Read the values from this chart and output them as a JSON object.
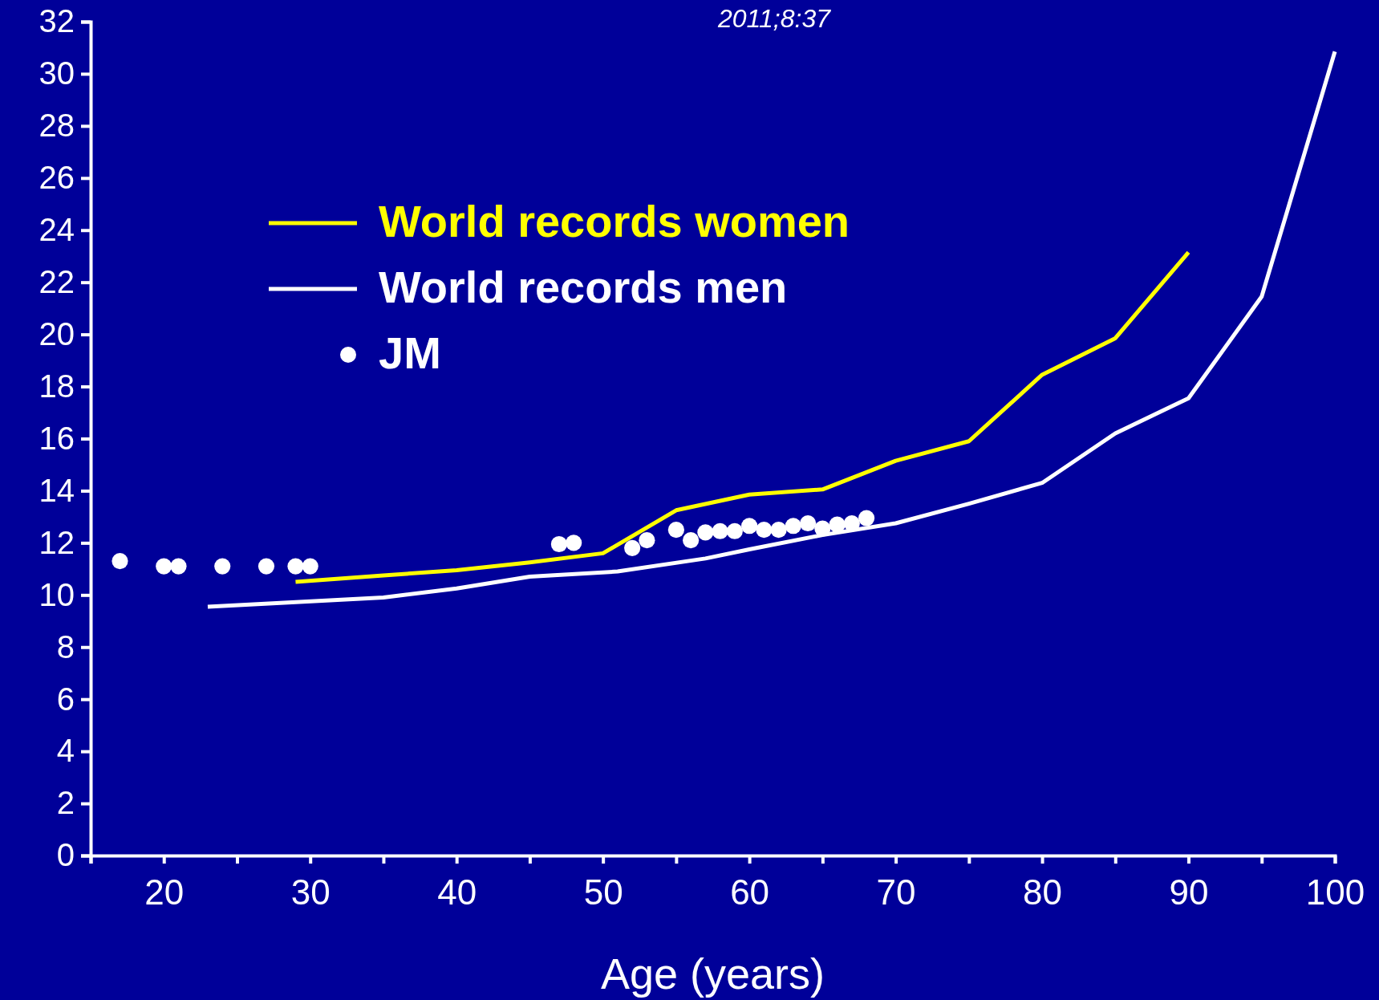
{
  "chart_data": {
    "type": "line",
    "xlabel": "Age (years)",
    "annotations": [
      "2011;8:37"
    ],
    "xlim": [
      15,
      100
    ],
    "xticks": [
      {
        "value": 15,
        "label": null
      },
      20,
      {
        "value": 25,
        "label": null
      },
      30,
      {
        "value": 35,
        "label": null
      },
      40,
      {
        "value": 45,
        "label": null
      },
      50,
      {
        "value": 55,
        "label": null
      },
      60,
      {
        "value": 65,
        "label": null
      },
      70,
      {
        "value": 75,
        "label": null
      },
      80,
      {
        "value": 85,
        "label": null
      },
      90,
      {
        "value": 95,
        "label": null
      },
      100
    ],
    "ylim": [
      0,
      32
    ],
    "yticks": [
      0,
      2,
      4,
      6,
      8,
      10,
      12,
      14,
      16,
      18,
      20,
      22,
      24,
      26,
      28,
      30,
      32
    ],
    "grid": false,
    "legend": "top left",
    "line_style": "solid",
    "series": [
      {
        "name": "World records women",
        "color": "#ffff00",
        "x": [
          29,
          35,
          40,
          45,
          50,
          55,
          60,
          65,
          70,
          75,
          80,
          85,
          90
        ],
        "values": [
          10.5,
          10.75,
          10.95,
          11.25,
          11.6,
          13.25,
          13.85,
          14.05,
          15.15,
          15.9,
          18.45,
          19.85,
          23.15
        ]
      },
      {
        "name": "World records men",
        "color": "#ffffff",
        "x": [
          23,
          35,
          40,
          45,
          51,
          57,
          60,
          65,
          70,
          75,
          80,
          85,
          90,
          95,
          100
        ],
        "values": [
          9.55,
          9.9,
          10.25,
          10.7,
          10.9,
          11.4,
          11.75,
          12.3,
          12.75,
          13.5,
          14.3,
          16.2,
          17.55,
          21.45,
          30.85
        ]
      },
      {
        "name": "JM",
        "color": "#ffffff",
        "type": "scatter",
        "marker": "circle",
        "x": [
          17,
          20,
          21,
          24,
          27,
          29,
          30,
          47,
          48,
          52,
          53,
          55,
          56,
          57,
          58,
          59,
          60,
          61,
          62,
          63,
          64,
          65,
          66,
          67,
          68
        ],
        "values": [
          11.3,
          11.1,
          11.1,
          11.1,
          11.1,
          11.1,
          11.1,
          11.95,
          12.0,
          11.8,
          12.1,
          12.5,
          12.1,
          12.4,
          12.45,
          12.45,
          12.65,
          12.5,
          12.5,
          12.65,
          12.75,
          12.55,
          12.7,
          12.75,
          12.95
        ]
      }
    ]
  }
}
